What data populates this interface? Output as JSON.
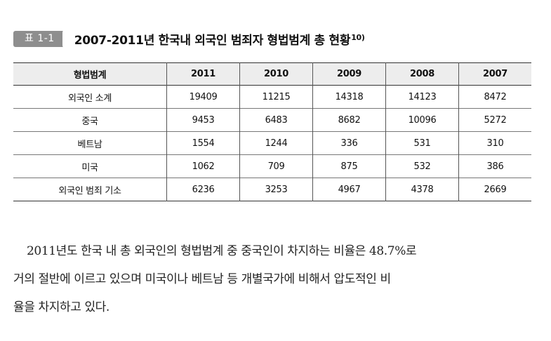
{
  "table_caption": {
    "tag": "표 1-1",
    "title": "2007-2011년 한국내 외국인 범죄자 형법범계 총 현황",
    "footnote_mark": "10)"
  },
  "table": {
    "headers": [
      "형법범계",
      "2011",
      "2010",
      "2009",
      "2008",
      "2007"
    ],
    "rows": [
      [
        "외국인 소계",
        "19409",
        "11215",
        "14318",
        "14123",
        "8472"
      ],
      [
        "중국",
        "9453",
        "6483",
        "8682",
        "10096",
        "5272"
      ],
      [
        "베트남",
        "1554",
        "1244",
        "336",
        "531",
        "310"
      ],
      [
        "미국",
        "1062",
        "709",
        "875",
        "532",
        "386"
      ],
      [
        "외국인 범죄 기소",
        "6236",
        "3253",
        "4967",
        "4378",
        "2669"
      ]
    ]
  },
  "paragraph": {
    "lines": [
      "2011년도 한국 내 총 외국인의 형법범계 중 중국인이 차지하는 비율은 48.7%로",
      "거의 절반에 이르고 있으며 미국이나 베트남 등 개별국가에 비해서 압도적인 비",
      "율을 차지하고 있다."
    ]
  },
  "colors": {
    "tag_background": "#8e8e8e",
    "header_background": "#ededed"
  }
}
